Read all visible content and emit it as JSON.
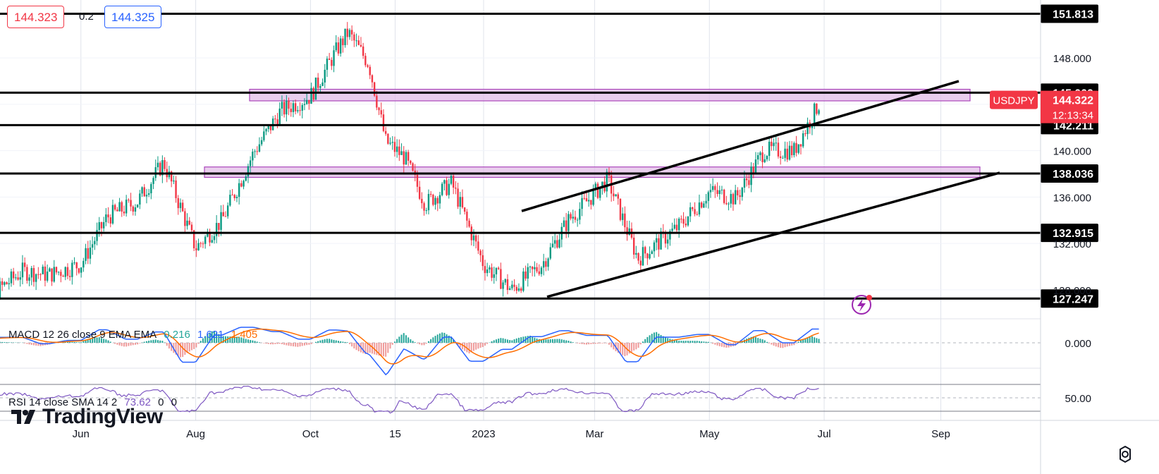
{
  "quote": {
    "sell": "144.323",
    "spread": "0.2",
    "buy": "144.325"
  },
  "colors": {
    "up": "#089981",
    "down": "#f23645",
    "zone": "#e1bee7",
    "zone_border": "#ab47bc",
    "macd": "#2962ff",
    "signal": "#ff6d00",
    "rsi": "#7e57c2"
  },
  "indicators": {
    "macd": {
      "label": "MACD 12 26 close 9 EMA EMA",
      "hist": "0.216",
      "macd": "1.621",
      "signal": "1.405"
    },
    "rsi": {
      "label": "RSI 14 close SMA 14 2",
      "value": "73.62",
      "extra1": "0",
      "extra2": "0"
    }
  },
  "brand": {
    "name": "TradingView"
  },
  "chart_data": {
    "type": "candlestick",
    "symbol": "USDJPY",
    "last_price": "144.322",
    "countdown": "12:13:34",
    "y_axis_ticks": [
      "148.000",
      "140.000",
      "136.000",
      "132.000",
      "128.000"
    ],
    "ylim": [
      125.5,
      153.0
    ],
    "x_axis_ticks": [
      "Jun",
      "Aug",
      "Oct",
      "15",
      "2023",
      "Mar",
      "May",
      "Jul",
      "Sep"
    ],
    "horizontal_levels": [
      "151.813",
      "145.009",
      "142.211",
      "138.036",
      "132.915",
      "127.247"
    ],
    "zones": [
      {
        "from": 144.3,
        "to": 145.3,
        "start": "Aug",
        "end": "Aug"
      },
      {
        "from": 137.7,
        "to": 138.6,
        "start": "Jul",
        "end": "Aug"
      }
    ],
    "channel": {
      "upper": {
        "start": [
          "2023-01",
          134.8
        ],
        "end": [
          "2023-08",
          146.0
        ]
      },
      "lower": {
        "start": [
          "2023-01",
          127.4
        ],
        "end": [
          "2023-09",
          138.1
        ]
      }
    },
    "close_path": [
      [
        "2022-04",
        125.9
      ],
      [
        "2022-05-01",
        129.6
      ],
      [
        "2022-05-15",
        129.3
      ],
      [
        "2022-06-01",
        130.2
      ],
      [
        "2022-06-15",
        134.3
      ],
      [
        "2022-07-01",
        135.6
      ],
      [
        "2022-07-15",
        139.0
      ],
      [
        "2022-08-01",
        131.6
      ],
      [
        "2022-08-15",
        134.0
      ],
      [
        "2022-09-01",
        139.9
      ],
      [
        "2022-09-15",
        143.4
      ],
      [
        "2022-10-01",
        144.7
      ],
      [
        "2022-10-15",
        148.7
      ],
      [
        "2022-10-21",
        150.2
      ],
      [
        "2022-11-01",
        147.5
      ],
      [
        "2022-11-10",
        140.8
      ],
      [
        "2022-11-20",
        139.4
      ],
      [
        "2022-12-01",
        135.4
      ],
      [
        "2022-12-15",
        137.2
      ],
      [
        "2023-01-01",
        130.2
      ],
      [
        "2023-01-16",
        128.0
      ],
      [
        "2023-02-01",
        130.2
      ],
      [
        "2023-02-15",
        134.0
      ],
      [
        "2023-03-08",
        137.5
      ],
      [
        "2023-03-24",
        130.7
      ],
      [
        "2023-04-15",
        133.5
      ],
      [
        "2023-05-01",
        136.5
      ],
      [
        "2023-05-15",
        135.9
      ],
      [
        "2023-05-30",
        140.0
      ],
      [
        "2023-06-15",
        140.0
      ],
      [
        "2023-06-29",
        144.3
      ]
    ],
    "macd": {
      "zero_label": "0.000"
    },
    "rsi": {
      "level_label": "50.00"
    }
  }
}
